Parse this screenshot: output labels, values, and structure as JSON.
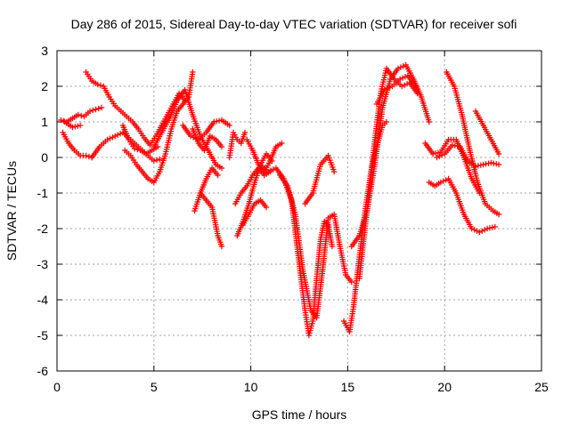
{
  "chart_data": {
    "type": "scatter",
    "title": "Day 286 of 2015, Sidereal Day-to-day VTEC variation (SDTVAR) for receiver sofi",
    "xlabel": "GPS time / hours",
    "ylabel": "SDTVAR / TECUs",
    "xlim": [
      0,
      25
    ],
    "ylim": [
      -6,
      3
    ],
    "x_ticks": [
      "0",
      "5",
      "10",
      "15",
      "20",
      "25"
    ],
    "y_ticks": [
      "3",
      "2",
      "1",
      "0",
      "-1",
      "-2",
      "-3",
      "-4",
      "-5",
      "-6"
    ],
    "grid": true,
    "marker": "+",
    "color": "#ff0000",
    "series": [
      {
        "x": [
          0.2,
          0.5,
          0.8,
          1.1,
          1.4,
          1.7,
          2.0,
          2.3
        ],
        "y": [
          1.05,
          1.0,
          1.1,
          1.2,
          1.15,
          1.3,
          1.35,
          1.4
        ]
      },
      {
        "x": [
          0.3,
          0.6,
          0.9,
          1.2,
          1.5,
          1.8
        ],
        "y": [
          0.7,
          0.4,
          0.2,
          0.05,
          0.05,
          0.0
        ]
      },
      {
        "x": [
          0.4,
          0.8,
          1.2
        ],
        "y": [
          1.0,
          0.85,
          0.9
        ]
      },
      {
        "x": [
          1.5,
          1.8,
          2.1,
          2.4,
          2.7,
          3.0,
          3.3,
          3.6,
          3.9,
          4.2,
          4.5,
          4.8,
          5.1,
          5.4,
          5.7,
          6.0,
          6.3,
          6.6
        ],
        "y": [
          2.4,
          2.15,
          2.05,
          2.0,
          1.7,
          1.45,
          1.3,
          1.15,
          1.0,
          0.8,
          0.55,
          0.35,
          0.6,
          0.9,
          1.2,
          1.5,
          1.8,
          1.6
        ]
      },
      {
        "x": [
          1.8,
          2.2,
          2.6,
          3.0,
          3.4,
          3.8,
          4.2,
          4.6,
          5.0,
          5.3
        ],
        "y": [
          0.0,
          0.3,
          0.5,
          0.6,
          0.7,
          0.5,
          0.3,
          0.1,
          -0.1,
          -0.05
        ]
      },
      {
        "x": [
          3.5,
          3.8,
          4.1,
          4.4,
          4.7,
          5.0,
          5.3,
          5.6,
          5.9,
          6.2,
          6.5,
          6.8,
          7.0
        ],
        "y": [
          0.2,
          0.05,
          -0.2,
          -0.4,
          -0.6,
          -0.7,
          -0.4,
          0.1,
          0.8,
          1.3,
          1.5,
          1.7,
          2.4
        ]
      },
      {
        "x": [
          3.4,
          3.7,
          4.0,
          4.3,
          4.6,
          4.9,
          5.2
        ],
        "y": [
          0.9,
          0.5,
          0.25,
          0.2,
          0.1,
          0.2,
          0.3
        ]
      },
      {
        "x": [
          5.0,
          5.4,
          5.8,
          6.2,
          6.6,
          7.0,
          7.4,
          7.8,
          8.2,
          8.5
        ],
        "y": [
          0.3,
          0.7,
          1.1,
          1.6,
          1.9,
          1.2,
          0.6,
          0.2,
          -0.2,
          -0.3
        ]
      },
      {
        "x": [
          6.5,
          6.9,
          7.3,
          7.7,
          8.1,
          8.5,
          8.9
        ],
        "y": [
          0.9,
          0.6,
          0.5,
          0.7,
          1.0,
          1.05,
          0.9
        ]
      },
      {
        "x": [
          7.0,
          7.3,
          7.6,
          7.9,
          8.2,
          8.5
        ],
        "y": [
          0.8,
          0.4,
          0.2,
          0.6,
          0.5,
          0.3
        ]
      },
      {
        "x": [
          7.1,
          7.4,
          7.7,
          8.0,
          8.3
        ],
        "y": [
          -1.5,
          -1.0,
          -0.6,
          -0.3,
          -0.5
        ]
      },
      {
        "x": [
          7.4,
          7.7,
          8.0,
          8.3,
          8.5
        ],
        "y": [
          -1.0,
          -1.2,
          -1.4,
          -2.2,
          -2.5
        ]
      },
      {
        "x": [
          8.9,
          9.1,
          9.3,
          9.5,
          9.7
        ],
        "y": [
          0.0,
          0.7,
          0.5,
          0.4,
          0.7
        ]
      },
      {
        "x": [
          9.2,
          9.5,
          9.8,
          10.1,
          10.4,
          10.7,
          11.0
        ],
        "y": [
          -1.3,
          -1.0,
          -0.8,
          -0.5,
          -0.3,
          -0.5,
          -0.4
        ]
      },
      {
        "x": [
          9.3,
          9.6,
          9.9,
          10.2,
          10.5,
          10.8,
          11.1
        ],
        "y": [
          -2.2,
          -1.8,
          -1.3,
          -0.7,
          -0.2,
          0.1,
          -0.1
        ]
      },
      {
        "x": [
          9.6,
          9.9,
          10.2,
          10.5,
          10.8
        ],
        "y": [
          -1.9,
          -1.6,
          -1.3,
          -1.2,
          -1.4
        ]
      },
      {
        "x": [
          9.8,
          10.1,
          10.4,
          10.7,
          11.0,
          11.3,
          11.6
        ],
        "y": [
          0.5,
          0.2,
          -0.2,
          -0.4,
          -0.1,
          0.3,
          0.4
        ]
      },
      {
        "x": [
          10.5,
          10.9,
          11.3,
          11.7,
          12.1,
          12.5,
          12.8,
          13.0,
          13.2,
          13.4,
          13.6,
          13.8,
          14.0,
          14.2
        ],
        "y": [
          -0.2,
          -0.4,
          -0.3,
          -0.6,
          -1.2,
          -3.0,
          -4.3,
          -5.0,
          -4.6,
          -3.4,
          -2.3,
          -1.8,
          -1.9,
          -2.5
        ]
      },
      {
        "x": [
          11.5,
          11.9,
          12.3,
          12.7,
          13.1,
          13.4,
          13.7,
          14.0,
          14.3,
          14.6,
          14.9,
          15.2
        ],
        "y": [
          -0.5,
          -0.8,
          -1.6,
          -3.2,
          -4.3,
          -4.5,
          -3.2,
          -1.7,
          -1.6,
          -2.5,
          -3.3,
          -3.5
        ]
      },
      {
        "x": [
          12.8,
          13.2,
          13.6,
          14.0,
          14.3
        ],
        "y": [
          -1.3,
          -1.0,
          -0.2,
          0.05,
          -0.4
        ]
      },
      {
        "x": [
          14.8,
          15.1,
          15.3,
          15.6,
          15.9,
          16.2,
          16.5,
          16.8,
          17.0
        ],
        "y": [
          -4.6,
          -4.9,
          -4.2,
          -2.8,
          -1.5,
          -0.4,
          0.3,
          0.9,
          1.0
        ]
      },
      {
        "x": [
          15.2,
          15.6,
          16.0,
          16.4,
          16.8,
          17.2,
          17.6,
          18.0,
          18.4,
          18.8,
          19.2
        ],
        "y": [
          -2.5,
          -2.2,
          -1.5,
          -0.2,
          1.4,
          2.2,
          2.5,
          2.6,
          2.2,
          1.7,
          1.0
        ]
      },
      {
        "x": [
          15.6,
          16.0,
          16.4,
          16.7,
          17.0,
          17.4,
          17.8,
          18.2,
          18.6
        ],
        "y": [
          -3.4,
          -1.5,
          0.5,
          1.8,
          2.5,
          2.2,
          2.0,
          2.1,
          1.8
        ]
      },
      {
        "x": [
          16.5,
          16.9,
          17.3,
          17.7,
          18.1,
          18.5
        ],
        "y": [
          1.5,
          1.9,
          2.0,
          2.2,
          2.3,
          2.0
        ]
      },
      {
        "x": [
          19.0,
          19.4,
          19.8,
          20.2,
          20.6,
          21.0,
          21.4,
          21.8
        ],
        "y": [
          0.4,
          0.1,
          0.15,
          0.5,
          0.5,
          0.0,
          -0.6,
          -1.0
        ]
      },
      {
        "x": [
          19.2,
          19.5,
          19.8,
          20.2,
          20.6,
          21.0,
          21.4,
          21.8,
          22.2,
          22.6
        ],
        "y": [
          -0.7,
          -0.8,
          -0.7,
          -0.6,
          -1.0,
          -1.6,
          -2.0,
          -2.1,
          -2.0,
          -1.95
        ]
      },
      {
        "x": [
          19.6,
          20.0,
          20.4,
          20.8,
          21.2,
          21.6,
          22.0,
          22.4,
          22.8
        ],
        "y": [
          0.0,
          0.1,
          0.35,
          0.3,
          -0.1,
          -0.25,
          -0.2,
          -0.15,
          -0.2
        ]
      },
      {
        "x": [
          20.1,
          20.5,
          20.9,
          21.3,
          21.7,
          22.1,
          22.5,
          22.8
        ],
        "y": [
          2.4,
          2.0,
          1.2,
          0.2,
          -0.7,
          -1.3,
          -1.5,
          -1.6
        ]
      },
      {
        "x": [
          21.6,
          22.0,
          22.4,
          22.8
        ],
        "y": [
          1.3,
          0.9,
          0.5,
          0.1
        ]
      }
    ]
  }
}
